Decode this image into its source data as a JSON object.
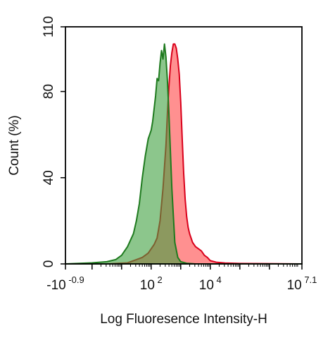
{
  "chart_data": {
    "type": "area",
    "xlabel": "Log Fluoresence Intensity-H",
    "ylabel": "Count  (%)",
    "xscale": "biexponential (log)",
    "xlim_log10": [
      -0.9,
      7.1
    ],
    "ylim": [
      0,
      110
    ],
    "grid": false,
    "legend": "none",
    "x_tick_labels": [
      {
        "base": "-10",
        "exp": "-0.9",
        "log10": -0.9
      },
      {
        "base": "10",
        "exp": "2",
        "log10": 2
      },
      {
        "base": "10",
        "exp": "4",
        "log10": 4
      },
      {
        "base": "10",
        "exp": "7.1",
        "log10": 7.1
      }
    ],
    "y_tick_labels": [
      {
        "label": "0",
        "value": 0
      },
      {
        "label": "40",
        "value": 40
      },
      {
        "label": "80",
        "value": 80
      },
      {
        "label": "110",
        "value": 110
      }
    ],
    "series": [
      {
        "color": "#ff6b6b",
        "stroke": "#d9001b",
        "x_log10": [
          -0.9,
          0.5,
          1.2,
          1.5,
          1.7,
          1.9,
          2.0,
          2.1,
          2.2,
          2.3,
          2.4,
          2.5,
          2.55,
          2.6,
          2.65,
          2.7,
          2.75,
          2.8,
          2.85,
          2.9,
          2.95,
          3.0,
          3.05,
          3.1,
          3.15,
          3.2,
          3.25,
          3.3,
          3.4,
          3.5,
          3.6,
          3.7,
          3.8,
          3.9,
          4.0,
          4.2,
          4.5,
          5.0,
          7.1
        ],
        "y": [
          0,
          0,
          0.5,
          2,
          3,
          5,
          7,
          9,
          12,
          20,
          35,
          55,
          70,
          82,
          92,
          98,
          102,
          102,
          100,
          95,
          88,
          75,
          58,
          42,
          30,
          22,
          17,
          14,
          10,
          8,
          7,
          6,
          4,
          3,
          1.5,
          0.8,
          0.4,
          0.2,
          0
        ]
      },
      {
        "color": "#3fa03f",
        "stroke": "#1e7a1e",
        "x_log10": [
          -0.9,
          0.0,
          0.5,
          0.8,
          1.0,
          1.2,
          1.4,
          1.5,
          1.6,
          1.7,
          1.8,
          1.9,
          2.0,
          2.05,
          2.1,
          2.15,
          2.2,
          2.25,
          2.3,
          2.35,
          2.4,
          2.45,
          2.5,
          2.55,
          2.6,
          2.7,
          2.8,
          2.9,
          3.0,
          3.2,
          3.5,
          7.1
        ],
        "y": [
          0,
          0.5,
          1,
          2,
          4,
          8,
          14,
          20,
          28,
          40,
          50,
          58,
          62,
          66,
          72,
          78,
          86,
          85,
          93,
          99,
          95,
          102,
          96,
          85,
          70,
          35,
          10,
          3,
          1,
          0.3,
          0,
          0
        ]
      }
    ]
  }
}
